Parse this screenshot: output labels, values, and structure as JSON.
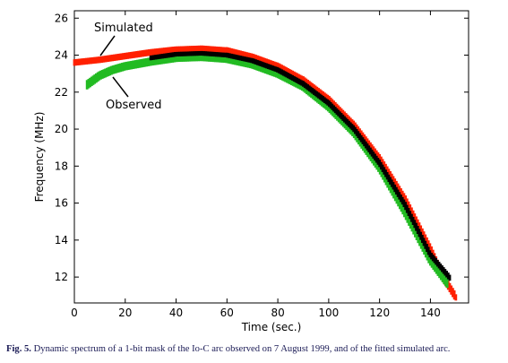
{
  "figure": {
    "caption_label": "Fig. 5.",
    "caption_text": "Dynamic spectrum of a 1-bit mask of the Io-C arc observed on 7 August 1999, and of the fitted simulated arc."
  },
  "chart_data": {
    "type": "scatter",
    "xlabel": "Time (sec.)",
    "ylabel": "Frequency (MHz)",
    "xlim": [
      0,
      155
    ],
    "ylim": [
      10.6,
      26.4
    ],
    "xticks": [
      0,
      20,
      40,
      60,
      80,
      100,
      120,
      140
    ],
    "yticks": [
      12,
      14,
      16,
      18,
      20,
      22,
      24,
      26
    ],
    "grid": false,
    "annotations": [
      {
        "text": "Simulated",
        "series": "Simulated"
      },
      {
        "text": "Observed",
        "series": "Observed"
      }
    ],
    "series": [
      {
        "name": "Simulated",
        "color": "#ff2000",
        "x": [
          0,
          10,
          20,
          30,
          40,
          50,
          60,
          70,
          80,
          90,
          100,
          110,
          120,
          130,
          140,
          145,
          150
        ],
        "y": [
          23.6,
          23.75,
          23.95,
          24.15,
          24.3,
          24.35,
          24.25,
          23.9,
          23.4,
          22.65,
          21.6,
          20.2,
          18.4,
          16.2,
          13.5,
          12.0,
          10.9
        ]
      },
      {
        "name": "Observed",
        "color": "#22bb22",
        "x": [
          5,
          10,
          15,
          20,
          30,
          40,
          50,
          60,
          70,
          80,
          90,
          100,
          110,
          120,
          130,
          140,
          147
        ],
        "y": [
          22.4,
          22.9,
          23.2,
          23.4,
          23.65,
          23.85,
          23.9,
          23.8,
          23.5,
          23.0,
          22.3,
          21.2,
          19.8,
          17.9,
          15.5,
          12.9,
          11.6
        ]
      },
      {
        "name": "Fit",
        "color": "#000000",
        "x": [
          30,
          40,
          50,
          60,
          70,
          80,
          90,
          100,
          110,
          120,
          130,
          140,
          148
        ],
        "y": [
          23.85,
          24.05,
          24.1,
          24.0,
          23.7,
          23.2,
          22.45,
          21.4,
          20.0,
          18.15,
          15.9,
          13.2,
          11.9
        ]
      }
    ]
  }
}
